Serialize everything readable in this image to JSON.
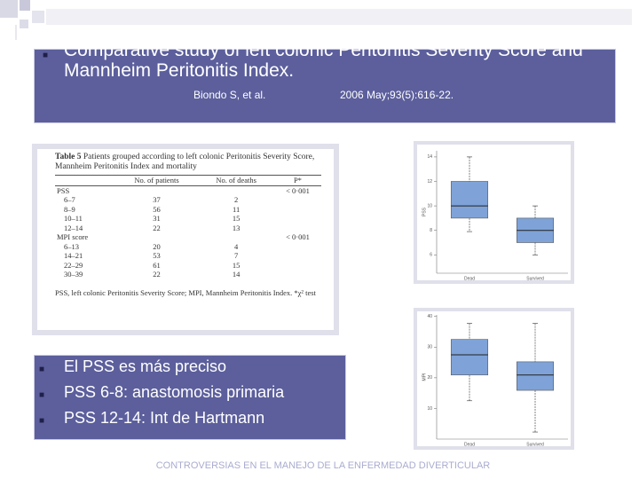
{
  "header": {
    "title": "Comparative study of left colonic Peritonitis Severity Score and Mannheim Peritonitis Index.",
    "author": "Biondo S, et al.",
    "citation": "2006 May;93(5):616-22."
  },
  "table": {
    "label": "Table 5",
    "caption": "Patients grouped according to left colonic Peritonitis Severity Score, Mannheim Peritonitis Index and mortality",
    "columns": [
      "No. of patients",
      "No. of deaths",
      "P*"
    ],
    "rows": [
      {
        "label": "PSS",
        "p": "< 0·001"
      },
      {
        "label": "6–7",
        "patients": "37",
        "deaths": "2"
      },
      {
        "label": "8–9",
        "patients": "56",
        "deaths": "11"
      },
      {
        "label": "10–11",
        "patients": "31",
        "deaths": "15"
      },
      {
        "label": "12–14",
        "patients": "22",
        "deaths": "13"
      },
      {
        "label": "MPI score",
        "p": "< 0·001"
      },
      {
        "label": "6–13",
        "patients": "20",
        "deaths": "4"
      },
      {
        "label": "14–21",
        "patients": "53",
        "deaths": "7"
      },
      {
        "label": "22–29",
        "patients": "61",
        "deaths": "15"
      },
      {
        "label": "30–39",
        "patients": "22",
        "deaths": "14"
      }
    ],
    "footnote": "PSS, left colonic Peritonitis Severity Score; MPI, Mannheim Peritonitis Index. *χ² test"
  },
  "figures": [
    {
      "type": "box",
      "ylabel": "PSS",
      "categories": [
        "Dead",
        "Survived"
      ],
      "color": "#7fa3d8",
      "boxes": [
        {
          "min": 7.9,
          "q1": 9,
          "median": 10,
          "q3": 12,
          "max": 14
        },
        {
          "min": 6,
          "q1": 7,
          "median": 8,
          "q3": 9,
          "max": 10
        }
      ],
      "ylim": [
        4.5,
        14.5
      ],
      "yticks": [
        6,
        8,
        10,
        12,
        14
      ]
    },
    {
      "type": "box",
      "ylabel": "MPI",
      "categories": [
        "Dead",
        "Survived"
      ],
      "color": "#7fa3d8",
      "boxes": [
        {
          "min": 12.5,
          "q1": 20.9,
          "median": 27.5,
          "q3": 32.5,
          "max": 37.7
        },
        {
          "min": 2.3,
          "q1": 15.9,
          "median": 20.9,
          "q3": 25.2,
          "max": 37.7
        }
      ],
      "ylim": [
        0,
        40.5
      ],
      "yticks": [
        10,
        20,
        30,
        40
      ]
    }
  ],
  "bullets": [
    "El PSS es más preciso",
    "PSS 6-8: anastomosis primaria",
    "PSS 12-14: Int de Hartmann"
  ],
  "footer": "CONTROVERSIAS EN EL MANEJO DE LA ENFERMEDAD DIVERTICULAR"
}
